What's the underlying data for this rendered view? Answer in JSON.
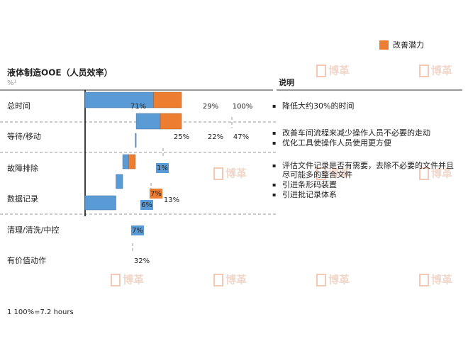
{
  "chart_data": {
    "type": "waterfall",
    "title": "液体制造OOE（人员效率）",
    "subtitle": "%¹",
    "categories": [
      "总时间",
      "等待/移动",
      "故障排除",
      "数据记录",
      "清理/清洗/中控",
      "有价值动作"
    ],
    "values": [
      71,
      25,
      1,
      6,
      7,
      32
    ],
    "value_labels": [
      "71%",
      "25%",
      "1%",
      "6%",
      "7%",
      "32%"
    ],
    "color": "#5b9bd5",
    "improvement": {
      "name": "改善潜力",
      "color": "#ed7d31",
      "values": [
        29,
        22,
        null,
        7,
        null,
        null
      ],
      "value_labels": [
        "29%",
        "22%",
        null,
        "7%",
        null,
        null
      ]
    },
    "totals": [
      100,
      47,
      null,
      13,
      null,
      null
    ],
    "total_labels": [
      "100%",
      "47%",
      null,
      "13%",
      null,
      null
    ],
    "xlim": [
      0,
      100
    ],
    "legend": "top-right"
  },
  "notes": {
    "title": "说明",
    "items": [
      [
        "降低大约30%的时间"
      ],
      [
        "改善车间流程来减少操作人员不必要的走动",
        "优化工具使操作人员使用更方便"
      ],
      [
        "评估文件记录是否有需要，去除不必要的文件并且尽可能多的整合文件",
        "引进条形码装置",
        "引进批记录体系"
      ]
    ]
  },
  "footnote": "1 100%=7.2 hours",
  "watermark": "博革"
}
